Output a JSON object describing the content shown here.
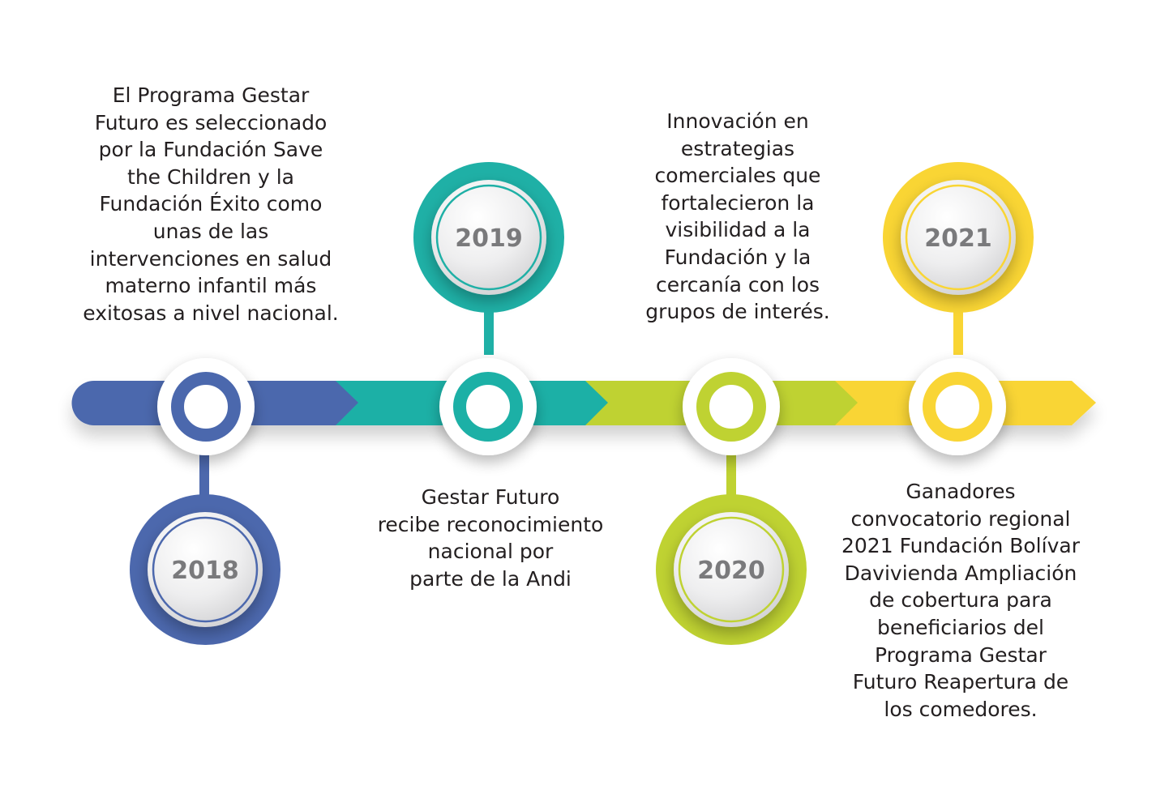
{
  "milestones": [
    {
      "year": "2018",
      "color": "#4c68ad",
      "text": "El Programa Gestar\nFuturo es seleccionado\npor la Fundación Save\nthe Children y la\nFundación Éxito como\nunas de las\nintervenciones en salud\nmaterno infantil más\nexitosas a nivel nacional."
    },
    {
      "year": "2019",
      "color": "#1fb0a6",
      "text": "Gestar Futuro\nrecibe reconocimiento\nnacional por\nparte de la Andi"
    },
    {
      "year": "2020",
      "color": "#bfd232",
      "text": "Innovación en\nestrategias\ncomerciales que\nfortalecieron la\nvisibilidad a la\nFundación y la\ncercanía con los\ngrupos de interés."
    },
    {
      "year": "2021",
      "color": "#f9d534",
      "text": "Ganadores\nconvocatorio regional\n2021 Fundación Bolívar\nDavivienda Ampliación\nde cobertura para\nbeneficiarios del\nPrograma Gestar\nFuturo Reapertura de\nlos comedores."
    }
  ]
}
